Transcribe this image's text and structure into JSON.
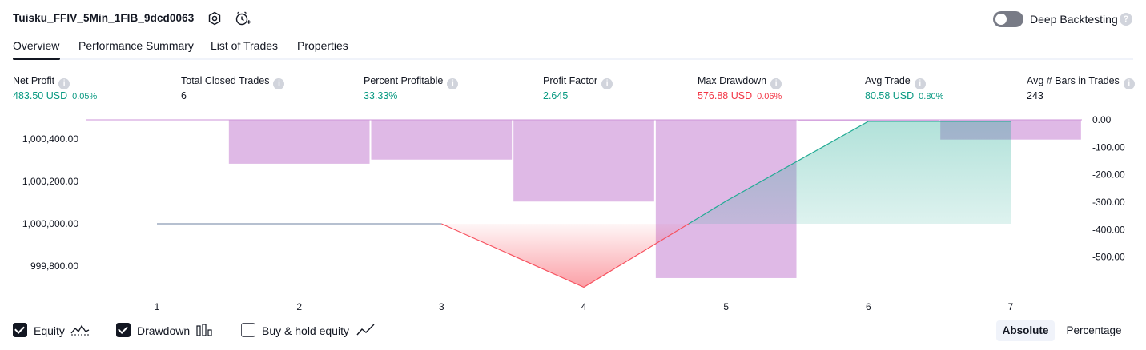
{
  "header": {
    "strategy_name": "Tuisku_FFIV_5Min_1FIB_9dcd0063",
    "deep_backtesting_label": "Deep Backtesting",
    "deep_backtesting_enabled": false,
    "help_glyph": "?"
  },
  "tabs": [
    {
      "label": "Overview",
      "active": true
    },
    {
      "label": "Performance Summary",
      "active": false
    },
    {
      "label": "List of Trades",
      "active": false
    },
    {
      "label": "Properties",
      "active": false
    }
  ],
  "metrics": [
    {
      "label": "Net Profit",
      "value": "483.50 USD",
      "pct": "0.05%",
      "color": "#089981"
    },
    {
      "label": "Total Closed Trades",
      "value": "6",
      "pct": "",
      "color": "#131722"
    },
    {
      "label": "Percent Profitable",
      "value": "33.33%",
      "pct": "",
      "color": "#089981"
    },
    {
      "label": "Profit Factor",
      "value": "2.645",
      "pct": "",
      "color": "#089981"
    },
    {
      "label": "Max Drawdown",
      "value": "576.88 USD",
      "pct": "0.06%",
      "color": "#f23645"
    },
    {
      "label": "Avg Trade",
      "value": "80.58 USD",
      "pct": "0.80%",
      "color": "#089981"
    },
    {
      "label": "Avg # Bars in Trades",
      "value": "243",
      "pct": "",
      "color": "#131722"
    }
  ],
  "info_glyph": "i",
  "chart_data": {
    "type": "line",
    "x": [
      1,
      2,
      3,
      4,
      5,
      6,
      7
    ],
    "left_axis_ticks": [
      "1,000,400.00",
      "1,000,200.00",
      "1,000,000.00",
      "999,800.00"
    ],
    "right_axis_ticks": [
      "0.00",
      "-100.00",
      "-200.00",
      "-300.00",
      "-400.00",
      "-500.00"
    ],
    "equity": {
      "name": "Equity",
      "values": [
        1000000.0,
        1000000.0,
        1000000.0,
        999700.0,
        1000107.0,
        1000483.5,
        1000483.5
      ],
      "colors": {
        "profit": "#22ab94",
        "loss": "#f7525f"
      }
    },
    "drawdown": {
      "name": "Drawdown",
      "values": [
        0.0,
        -160.0,
        -145.0,
        -298.0,
        -576.88,
        -5.0,
        -72.0
      ],
      "color": "#ce93d8"
    },
    "left_ylim": [
      999660,
      1000480
    ],
    "right_ylim": [
      -612,
      0
    ]
  },
  "legend": {
    "items": [
      {
        "label": "Equity",
        "checked": true,
        "icon": "equity-line-icon"
      },
      {
        "label": "Drawdown",
        "checked": true,
        "icon": "drawdown-bars-icon"
      },
      {
        "label": "Buy & hold equity",
        "checked": false,
        "icon": "buy-hold-line-icon"
      }
    ]
  },
  "view_toggle": {
    "absolute": "Absolute",
    "percentage": "Percentage",
    "selected": "Absolute"
  }
}
